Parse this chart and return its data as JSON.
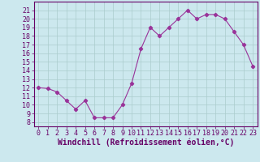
{
  "x": [
    0,
    1,
    2,
    3,
    4,
    5,
    6,
    7,
    8,
    9,
    10,
    11,
    12,
    13,
    14,
    15,
    16,
    17,
    18,
    19,
    20,
    21,
    22,
    23
  ],
  "y": [
    12.0,
    11.9,
    11.5,
    10.5,
    9.5,
    10.5,
    8.5,
    8.5,
    8.5,
    10.0,
    12.5,
    16.5,
    19.0,
    18.0,
    19.0,
    20.0,
    21.0,
    20.0,
    20.5,
    20.5,
    20.0,
    18.5,
    17.0,
    14.5
  ],
  "line_color": "#993399",
  "marker": "D",
  "bg_color": "#cce8ee",
  "grid_color": "#aacccc",
  "ylabel_ticks": [
    8,
    9,
    10,
    11,
    12,
    13,
    14,
    15,
    16,
    17,
    18,
    19,
    20,
    21
  ],
  "xlabel": "Windchill (Refroidissement éolien,°C)",
  "ylim": [
    7.5,
    22
  ],
  "xlim": [
    -0.5,
    23.5
  ],
  "tick_fontsize": 6.0,
  "xlabel_fontsize": 7.0,
  "label_color": "#660066",
  "spine_color": "#660066",
  "figsize": [
    3.2,
    2.0
  ],
  "dpi": 100
}
